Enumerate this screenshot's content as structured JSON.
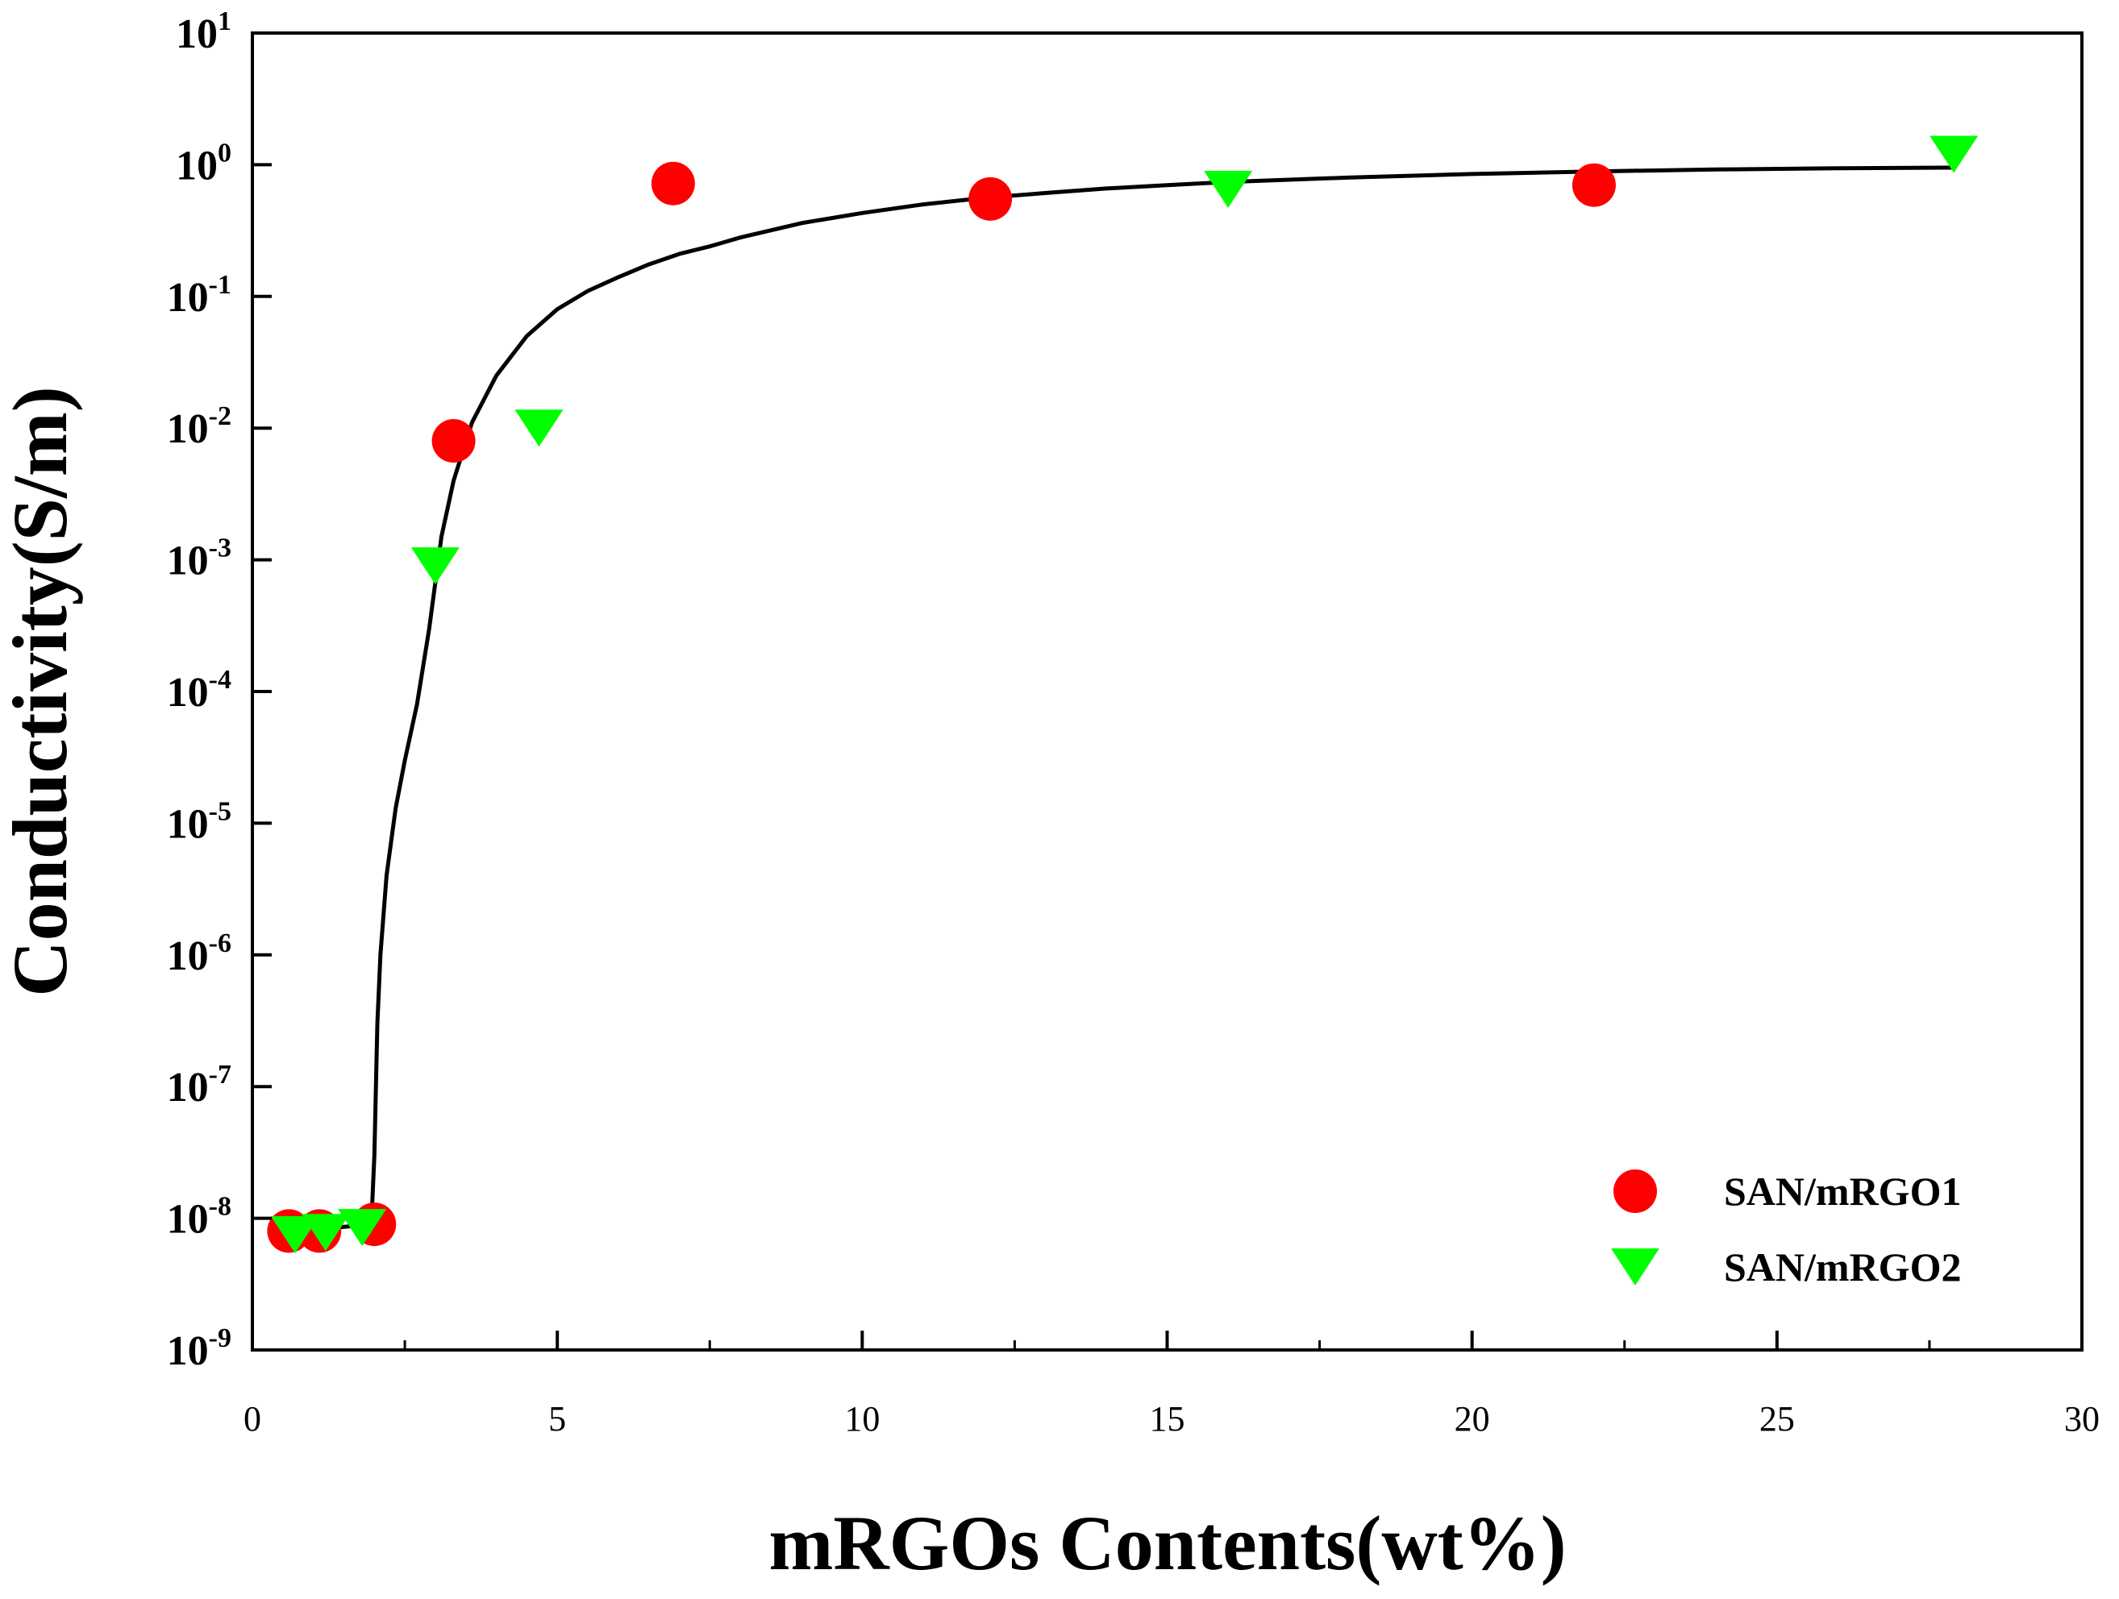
{
  "chart_data": {
    "type": "scatter",
    "title": "",
    "xlabel": "mRGOs Contents(wt%)",
    "ylabel": "Conductivity(S/m)",
    "xlim": [
      0,
      30
    ],
    "ylim_log10": [
      -9,
      1
    ],
    "y_scale": "log",
    "x_ticks": [
      0,
      5,
      10,
      15,
      20,
      25,
      30
    ],
    "x_tick_labels": [
      "0",
      "5",
      "10",
      "15",
      "20",
      "25",
      "30"
    ],
    "y_ticks_exponent": [
      -9,
      -8,
      -7,
      -6,
      -5,
      -4,
      -3,
      -2,
      -1,
      0,
      1
    ],
    "y_tick_base": "10",
    "y_tick_exponent_labels": [
      "-9",
      "-8",
      "-7",
      "-6",
      "-5",
      "-4",
      "-3",
      "-2",
      "-1",
      "0",
      "1"
    ],
    "grid": false,
    "legend_position": "lower-right",
    "series": [
      {
        "name": "SAN/mRGO1",
        "marker": "circle",
        "color": "#ff0000",
        "points": [
          {
            "x": 0.6,
            "y": 8e-09
          },
          {
            "x": 1.1,
            "y": 8e-09
          },
          {
            "x": 2.0,
            "y": 9e-09
          },
          {
            "x": 3.3,
            "y": 0.008
          },
          {
            "x": 6.9,
            "y": 0.72
          },
          {
            "x": 12.1,
            "y": 0.55
          },
          {
            "x": 22.0,
            "y": 0.7
          }
        ]
      },
      {
        "name": "SAN/mRGO2",
        "marker": "triangle-down",
        "color": "#00ff00",
        "points": [
          {
            "x": 0.7,
            "y": 7.5e-09
          },
          {
            "x": 1.2,
            "y": 7.8e-09
          },
          {
            "x": 1.8,
            "y": 8.5e-09
          },
          {
            "x": 3.0,
            "y": 0.0009
          },
          {
            "x": 4.7,
            "y": 0.01
          },
          {
            "x": 16.0,
            "y": 0.65
          },
          {
            "x": 27.9,
            "y": 1.2
          }
        ]
      }
    ],
    "fit_curve": {
      "name": "fit",
      "color": "#000000",
      "points": [
        {
          "x": 0.6,
          "y": 8e-09
        },
        {
          "x": 1.0,
          "y": 8.2e-09
        },
        {
          "x": 1.5,
          "y": 8.6e-09
        },
        {
          "x": 1.95,
          "y": 9e-09
        },
        {
          "x": 2.0,
          "y": 3e-08
        },
        {
          "x": 2.05,
          "y": 3e-07
        },
        {
          "x": 2.1,
          "y": 1e-06
        },
        {
          "x": 2.2,
          "y": 4e-06
        },
        {
          "x": 2.35,
          "y": 1.3e-05
        },
        {
          "x": 2.5,
          "y": 3e-05
        },
        {
          "x": 2.7,
          "y": 8e-05
        },
        {
          "x": 2.9,
          "y": 0.0003
        },
        {
          "x": 3.1,
          "y": 0.0015
        },
        {
          "x": 3.3,
          "y": 0.004
        },
        {
          "x": 3.6,
          "y": 0.011
        },
        {
          "x": 4.0,
          "y": 0.025
        },
        {
          "x": 4.5,
          "y": 0.05
        },
        {
          "x": 5.0,
          "y": 0.08
        },
        {
          "x": 5.5,
          "y": 0.11
        },
        {
          "x": 6.0,
          "y": 0.14
        },
        {
          "x": 6.5,
          "y": 0.175
        },
        {
          "x": 7.0,
          "y": 0.21
        },
        {
          "x": 7.5,
          "y": 0.24
        },
        {
          "x": 8.0,
          "y": 0.28
        },
        {
          "x": 9.0,
          "y": 0.36
        },
        {
          "x": 10.0,
          "y": 0.43
        },
        {
          "x": 11.0,
          "y": 0.5
        },
        {
          "x": 12.0,
          "y": 0.56
        },
        {
          "x": 13.0,
          "y": 0.61
        },
        {
          "x": 14.0,
          "y": 0.66
        },
        {
          "x": 15.0,
          "y": 0.7
        },
        {
          "x": 16.0,
          "y": 0.74
        },
        {
          "x": 18.0,
          "y": 0.8
        },
        {
          "x": 20.0,
          "y": 0.85
        },
        {
          "x": 22.0,
          "y": 0.89
        },
        {
          "x": 24.0,
          "y": 0.92
        },
        {
          "x": 26.0,
          "y": 0.94
        },
        {
          "x": 27.9,
          "y": 0.95
        }
      ]
    }
  }
}
